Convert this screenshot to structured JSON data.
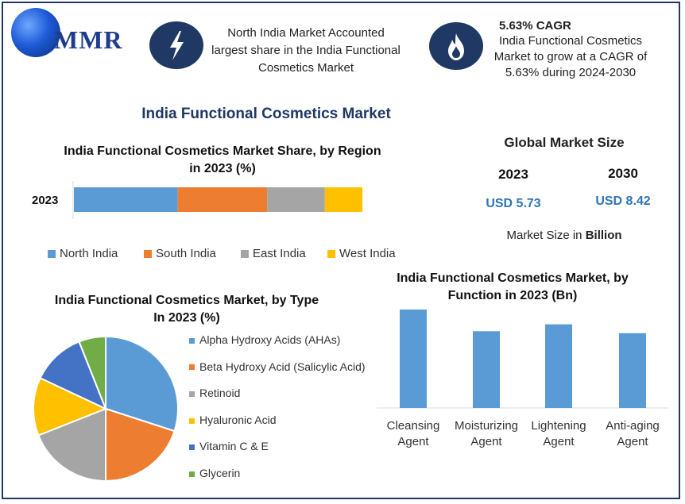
{
  "logo": {
    "text": "MMR"
  },
  "header": {
    "left_icon": "lightning-icon",
    "left_text": "North India Market Accounted largest share in the India Functional Cosmetics Market",
    "right_icon": "flame-icon",
    "right_title": "5.63% CAGR",
    "right_text": "India Functional Cosmetics Market to grow at a CAGR of 5.63% during 2024-2030"
  },
  "main_title": "India Functional Cosmetics Market",
  "global_market": {
    "title": "Global Market Size",
    "years": [
      "2023",
      "2030"
    ],
    "values": [
      "USD 5.73",
      "USD 8.42"
    ],
    "note_prefix": "Market Size in ",
    "note_bold": "Billion"
  },
  "colors": {
    "blue": "#5b9bd5",
    "orange": "#ed7d31",
    "gray": "#a5a5a5",
    "yellow": "#ffc000",
    "darkblue": "#4472c4",
    "green": "#70ad47",
    "navy": "#1f3864"
  },
  "chart_data": [
    {
      "type": "bar",
      "orientation": "horizontal-stacked",
      "title": "India Functional Cosmetics Market Share, by Region in 2023 (%)",
      "categories": [
        "2023"
      ],
      "series": [
        {
          "name": "North India",
          "values": [
            36
          ]
        },
        {
          "name": "South India",
          "values": [
            31
          ]
        },
        {
          "name": "East India",
          "values": [
            20
          ]
        },
        {
          "name": "West India",
          "values": [
            13
          ]
        }
      ],
      "legend": "bottom"
    },
    {
      "type": "pie",
      "title": "India Functional Cosmetics Market, by Type In 2023 (%)",
      "labels": [
        "Alpha Hydroxy Acids (AHAs)",
        "Beta Hydroxy Acid (Salicylic Acid)",
        "Retinoid",
        "Hyaluronic Acid",
        "Vitamin C & E",
        "Glycerin"
      ],
      "values": [
        30,
        20,
        19,
        13,
        12,
        6
      ],
      "legend": "right"
    },
    {
      "type": "bar",
      "title": "India Functional Cosmetics Market, by Function in 2023 (Bn)",
      "categories": [
        "Cleansing Agent",
        "Moisturizing Agent",
        "Lightening Agent",
        "Anti-aging Agent"
      ],
      "values": [
        1.0,
        0.78,
        0.85,
        0.76
      ],
      "legend": "none"
    }
  ]
}
